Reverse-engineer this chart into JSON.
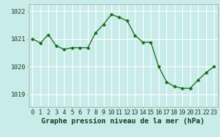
{
  "x": [
    0,
    1,
    2,
    3,
    4,
    5,
    6,
    7,
    8,
    9,
    10,
    11,
    12,
    13,
    14,
    15,
    16,
    17,
    18,
    19,
    20,
    21,
    22,
    23
  ],
  "y": [
    1021.0,
    1020.85,
    1021.15,
    1020.75,
    1020.62,
    1020.68,
    1020.68,
    1020.68,
    1021.22,
    1021.52,
    1021.88,
    1021.77,
    1021.65,
    1021.12,
    1020.88,
    1020.88,
    1020.0,
    1019.45,
    1019.28,
    1019.22,
    1019.22,
    1019.52,
    1019.78,
    1020.0
  ],
  "line_color": "#1a6b1a",
  "marker_color": "#1a6b1a",
  "bg_color": "#c8ecea",
  "plot_bg_color": "#c8ecea",
  "grid_color": "#ffffff",
  "spine_color": "#aaaaaa",
  "ylabel_ticks": [
    1019,
    1020,
    1021,
    1022
  ],
  "ylim": [
    1018.55,
    1022.25
  ],
  "xlim": [
    -0.5,
    23.5
  ],
  "xlabel_label": "Graphe pression niveau de la mer (hPa)",
  "xlabel_fontsize": 7.5,
  "tick_fontsize": 6.5,
  "marker_size": 2.5,
  "linewidth": 1.0
}
